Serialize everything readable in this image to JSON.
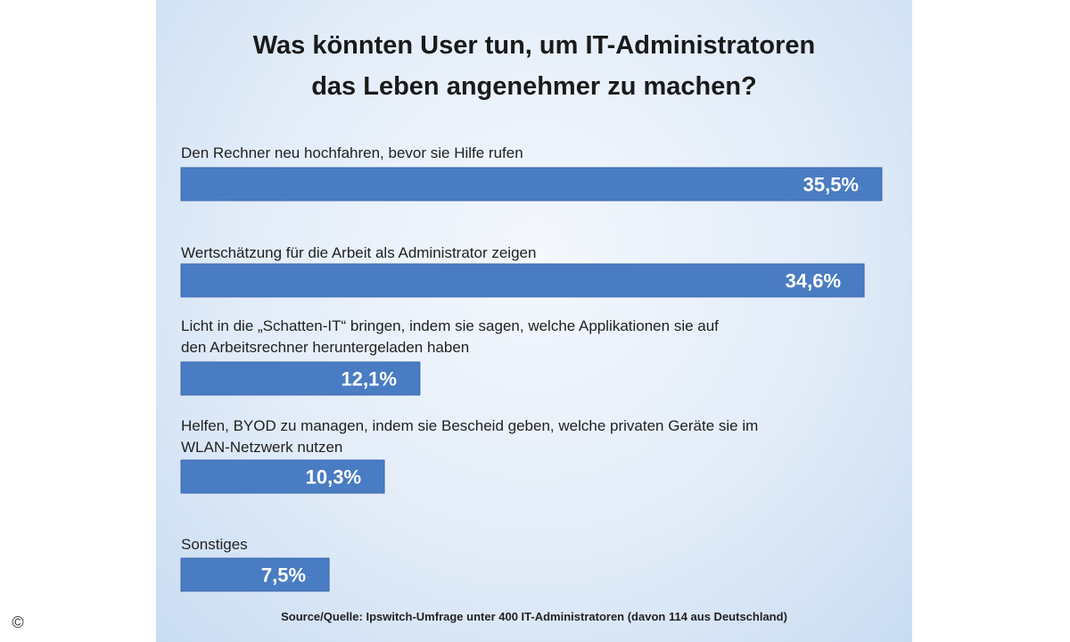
{
  "title_line1": "Was könnten User tun, um IT-Administratoren",
  "title_line2": "das Leben angenehmer zu machen?",
  "source": "Source/Quelle:  Ipswitch-Umfrage unter 400 IT-Administratoren (davon 114 aus Deutschland)",
  "copyright": "©",
  "colors": {
    "bar": "#4a7cc4",
    "bar_edge": "#3a68ad",
    "label": "#222222"
  },
  "chart_data": {
    "type": "bar",
    "orientation": "horizontal",
    "title": "Was könnten User tun, um IT-Administratoren das Leben angenehmer zu machen?",
    "categories": [
      [
        "Den Rechner neu hochfahren, bevor sie Hilfe rufen"
      ],
      [
        "Wertschätzung für die Arbeit als Administrator zeigen"
      ],
      [
        "Licht in die „Schatten-IT“ bringen, indem sie sagen, welche  Applikationen sie auf",
        "den Arbeitsrechner heruntergeladen haben"
      ],
      [
        "Helfen, BYOD zu managen, indem sie Bescheid geben, welche privaten Geräte sie im",
        "WLAN-Netzwerk nutzen"
      ],
      [
        "Sonstiges"
      ]
    ],
    "values": [
      35.5,
      34.6,
      12.1,
      10.3,
      7.5
    ],
    "value_labels": [
      "35,5%",
      "34,6%",
      "12,1%",
      "10,3%",
      "7,5%"
    ],
    "xlim": [
      0,
      35.5
    ],
    "grid": false,
    "legend": "none"
  }
}
